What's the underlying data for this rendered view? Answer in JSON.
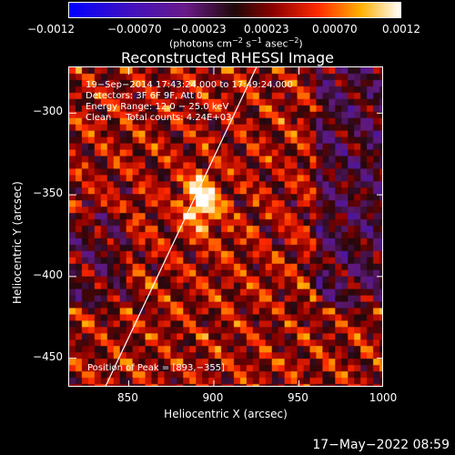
{
  "chart_data": {
    "type": "heatmap",
    "title": "Reconstructed RHESSI Image",
    "xlabel": "Heliocentric X (arcsec)",
    "ylabel": "Heliocentric Y (arcsec)",
    "xlim": [
      815,
      1000
    ],
    "ylim": [
      -468,
      -272
    ],
    "x_ticks": [
      850,
      900,
      950,
      1000
    ],
    "x_tick_labels": [
      "850",
      "900",
      "950",
      "1000"
    ],
    "y_ticks": [
      -300,
      -350,
      -400,
      -450
    ],
    "y_tick_labels": [
      "−300",
      "−350",
      "−400",
      "−450"
    ],
    "colorbar": {
      "range": [
        -0.0012,
        0.0012
      ],
      "tick_labels": [
        "−0.0012",
        "−0.00070",
        "−0.00023",
        "0.00023",
        "0.00070",
        "0.0012"
      ],
      "units_line": "(photons cm",
      "units_sup1": "−2",
      "units_mid": " s",
      "units_sup2": "−1",
      "units_mid2": " asec",
      "units_sup3": "−2",
      "units_end": ")"
    },
    "annotations": [
      "19−Sep−2014 17:43:24.000 to 17:49:24.000",
      "Detectors: 3F 6F 9F, Att 0",
      "Energy Range: 12.0 − 25.0 keV",
      "Clean     Total counts: 4.24E+03"
    ],
    "peak_label": "Position of Peak = [893,−355]",
    "peak_position": [
      893,
      -355
    ],
    "limb_line": [
      [
        836,
        -468
      ],
      [
        925,
        -272
      ]
    ],
    "colors": {
      "neg_min": "#0000ff",
      "neg_mid": "#6a1a8a",
      "zero": "#200808",
      "pos_low": "#b00000",
      "pos_mid": "#ff4000",
      "pos_high": "#ffd000",
      "pos_max": "#ffffff"
    }
  },
  "timestamp": "17−May−2022 08:59"
}
